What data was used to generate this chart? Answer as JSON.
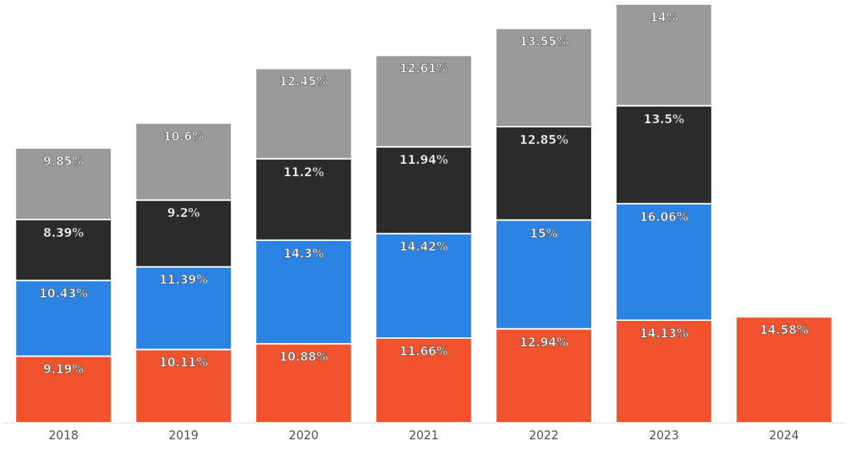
{
  "chart_data": {
    "type": "bar",
    "stacked": true,
    "grid": false,
    "categories": [
      "2018",
      "2019",
      "2020",
      "2021",
      "2022",
      "2023",
      "2024"
    ],
    "series": [
      {
        "color": "#f0532d",
        "values": [
          9.19,
          10.11,
          10.88,
          11.66,
          12.94,
          14.13,
          14.58
        ],
        "value_labels": [
          "9.19%",
          "10.11%",
          "10.88%",
          "11.66%",
          "12.94%",
          "14.13%",
          "14.58%"
        ]
      },
      {
        "color": "#2b84e3",
        "values": [
          10.43,
          11.39,
          14.3,
          14.42,
          15,
          16.06,
          null
        ],
        "value_labels": [
          "10.43%",
          "11.39%",
          "14.3%",
          "14.42%",
          "15%",
          "16.06%",
          null
        ]
      },
      {
        "color": "#2b2b2b",
        "values": [
          8.39,
          9.2,
          11.2,
          11.94,
          12.85,
          13.5,
          null
        ],
        "value_labels": [
          "8.39%",
          "9.2%",
          "11.2%",
          "11.94%",
          "12.85%",
          "13.5%",
          null
        ]
      },
      {
        "color": "#9a9a9a",
        "values": [
          9.85,
          10.6,
          12.45,
          12.61,
          13.55,
          14,
          null
        ],
        "value_labels": [
          "9.85%",
          "10.6%",
          "12.45%",
          "12.61%",
          "13.55%",
          "14%",
          null
        ]
      }
    ]
  }
}
